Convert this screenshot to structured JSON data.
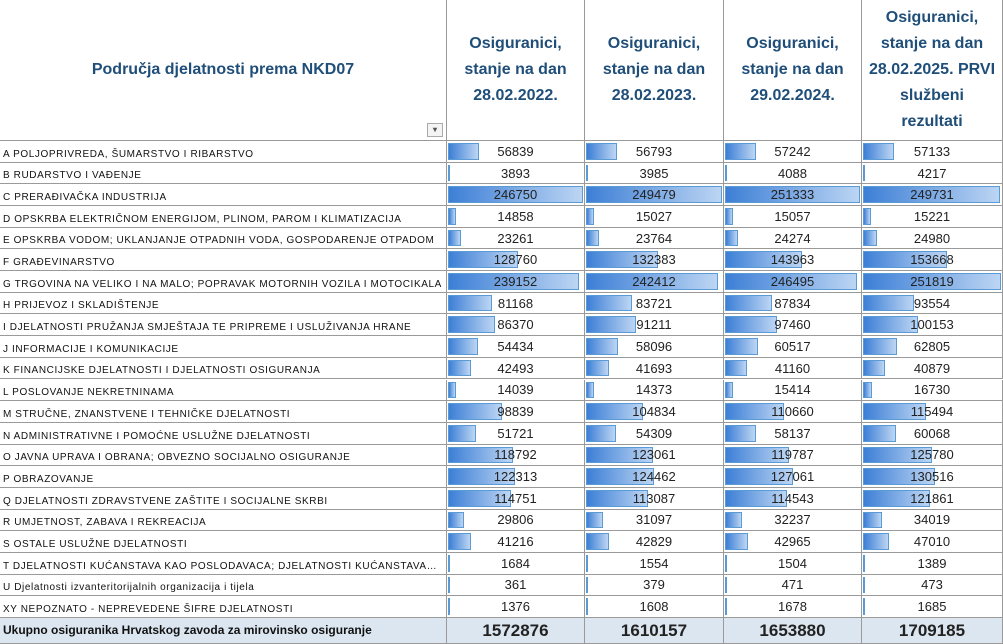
{
  "table": {
    "header": {
      "title": "Područja djelatnosti prema NKD07",
      "columns": [
        "Osiguranici, stanje na dan 28.02.2022.",
        "Osiguranici, stanje na dan 28.02.2023.",
        "Osiguranici, stanje na dan 29.02.2024.",
        "Osiguranici, stanje na dan 28.02.2025. PRVI službeni rezultati"
      ]
    },
    "rows": [
      [
        "A POLJOPRIVREDA, ŠUMARSTVO I RIBARSTVO",
        56839,
        56793,
        57242,
        57133
      ],
      [
        "B RUDARSTVO I VAĐENJE",
        3893,
        3985,
        4088,
        4217
      ],
      [
        "C PRERAĐIVAČKA INDUSTRIJA",
        246750,
        249479,
        251333,
        249731
      ],
      [
        "D OPSKRBA ELEKTRIČNOM ENERGIJOM, PLINOM, PAROM I KLIMATIZACIJA",
        14858,
        15027,
        15057,
        15221
      ],
      [
        "E OPSKRBA VODOM; UKLANJANJE OTPADNIH VODA, GOSPODARENJE OTPADOM",
        23261,
        23764,
        24274,
        24980
      ],
      [
        "F GRAĐEVINARSTVO",
        128760,
        132383,
        143963,
        153668
      ],
      [
        "G TRGOVINA NA VELIKO I NA MALO; POPRAVAK MOTORNIH VOZILA I MOTOCIKALA",
        239152,
        242412,
        246495,
        251819
      ],
      [
        "H PRIJEVOZ I SKLADIŠTENJE",
        81168,
        83721,
        87834,
        93554
      ],
      [
        "I DJELATNOSTI PRUŽANJA SMJEŠTAJA TE PRIPREME I USLUŽIVANJA HRANE",
        86370,
        91211,
        97460,
        100153
      ],
      [
        "J INFORMACIJE I KOMUNIKACIJE",
        54434,
        58096,
        60517,
        62805
      ],
      [
        "K FINANCIJSKE DJELATNOSTI I DJELATNOSTI OSIGURANJA",
        42493,
        41693,
        41160,
        40879
      ],
      [
        "L POSLOVANJE NEKRETNINAMA",
        14039,
        14373,
        15414,
        16730
      ],
      [
        "M STRUČNE, ZNANSTVENE I TEHNIČKE DJELATNOSTI",
        98839,
        104834,
        110660,
        115494
      ],
      [
        "N ADMINISTRATIVNE I POMOĆNE USLUŽNE DJELATNOSTI",
        51721,
        54309,
        58137,
        60068
      ],
      [
        "O JAVNA UPRAVA I OBRANA; OBVEZNO SOCIJALNO OSIGURANJE",
        118792,
        123061,
        119787,
        125780
      ],
      [
        "P OBRAZOVANJE",
        122313,
        124462,
        127061,
        130516
      ],
      [
        "Q DJELATNOSTI ZDRAVSTVENE ZAŠTITE I SOCIJALNE SKRBI",
        114751,
        113087,
        114543,
        121861
      ],
      [
        "R UMJETNOST, ZABAVA I REKREACIJA",
        29806,
        31097,
        32237,
        34019
      ],
      [
        "S OSTALE USLUŽNE DJELATNOSTI",
        41216,
        42829,
        42965,
        47010
      ],
      [
        "T DJELATNOSTI KUĆANSTAVA KAO POSLODAVACA; DJELATNOSTI KUĆANSTAVA…",
        1684,
        1554,
        1504,
        1389
      ],
      [
        "U Djelatnosti izvanteritorijalnih organizacija i tijela",
        361,
        379,
        471,
        473
      ],
      [
        "XY NEPOZNATO - NEPREVEDENE ŠIFRE DJELATNOSTI",
        1376,
        1608,
        1678,
        1685
      ]
    ],
    "total": [
      "Ukupno osiguranika Hrvatskog zavoda za mirovinsko osiguranje",
      1572876,
      1610157,
      1653880,
      1709185
    ]
  }
}
